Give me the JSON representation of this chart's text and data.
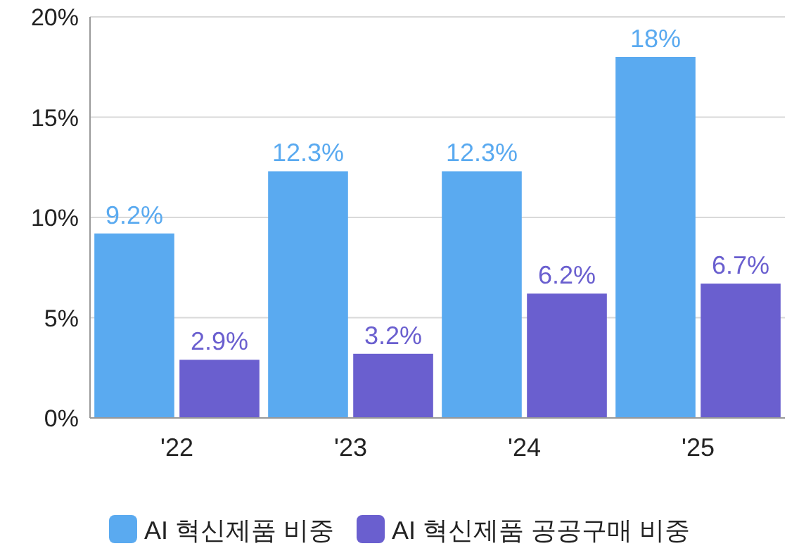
{
  "chart_data": {
    "type": "bar",
    "categories": [
      "'22",
      "'23",
      "'24",
      "'25"
    ],
    "series": [
      {
        "name": "AI 혁신제품 비중",
        "color": "#5aaaf0",
        "values": [
          9.2,
          12.3,
          12.3,
          18
        ],
        "value_labels": [
          "9.2%",
          "12.3%",
          "12.3%",
          "18%"
        ]
      },
      {
        "name": "AI 혁신제품 공공구매 비중",
        "color": "#6a5fcf",
        "values": [
          2.9,
          3.2,
          6.2,
          6.7
        ],
        "value_labels": [
          "2.9%",
          "3.2%",
          "6.2%",
          "6.7%"
        ]
      }
    ],
    "ylim": [
      0,
      20
    ],
    "yticks": [
      {
        "value": 0,
        "label": "0%"
      },
      {
        "value": 5,
        "label": "5%"
      },
      {
        "value": 10,
        "label": "10%"
      },
      {
        "value": 15,
        "label": "15%"
      },
      {
        "value": 20,
        "label": "20%"
      }
    ],
    "grid": "y",
    "legend": "bottom"
  }
}
